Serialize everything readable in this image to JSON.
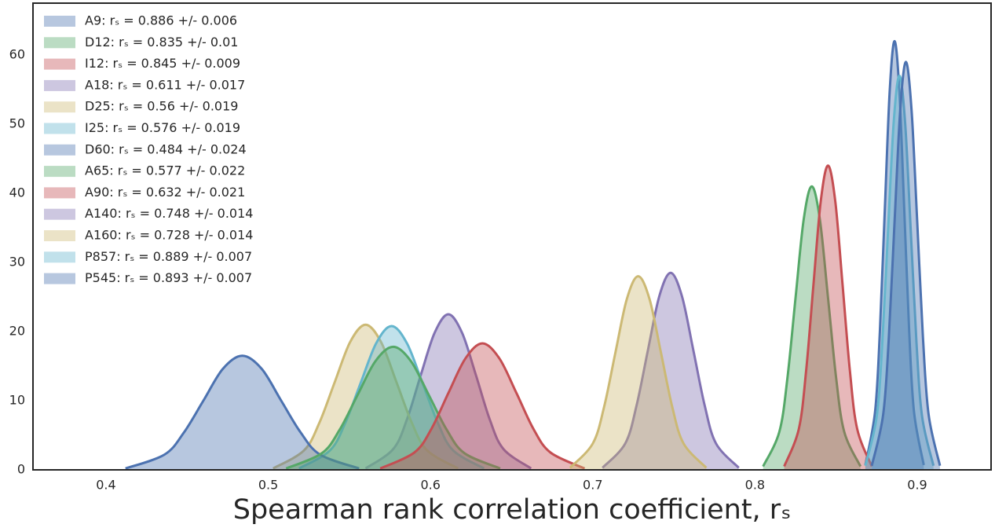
{
  "chart_data": {
    "type": "kde",
    "xlabel": "Spearman rank correlation coefficient, rₛ",
    "xlim": [
      0.355,
      0.9455
    ],
    "ylim": [
      0,
      67.5
    ],
    "xticks": [
      0.4,
      0.5,
      0.6,
      0.7,
      0.8,
      0.9
    ],
    "yticks": [
      0,
      10,
      20,
      30,
      40,
      50,
      60
    ],
    "legend": "upper left",
    "grid": false,
    "series": [
      {
        "name": "A9: rₛ = 0.886 +/- 0.006",
        "color": "#4c72b0",
        "x": [
          0.868,
          0.874,
          0.877,
          0.88,
          0.883,
          0.886,
          0.889,
          0.892,
          0.895,
          0.898,
          0.904
        ],
        "values": [
          0.7,
          8.4,
          20.2,
          37.6,
          54.7,
          62,
          54.7,
          37.6,
          20.2,
          8.4,
          0.7
        ]
      },
      {
        "name": "D12: rₛ = 0.835 +/- 0.01",
        "color": "#55a868",
        "x": [
          0.805,
          0.815,
          0.82,
          0.825,
          0.83,
          0.835,
          0.84,
          0.845,
          0.85,
          0.855,
          0.865
        ],
        "values": [
          0.5,
          5.5,
          13.3,
          24.9,
          36.2,
          41,
          36.2,
          24.9,
          13.3,
          5.5,
          0.5
        ]
      },
      {
        "name": "I12: rₛ = 0.845 +/- 0.009",
        "color": "#c44e52",
        "x": [
          0.818,
          0.827,
          0.8315,
          0.836,
          0.8405,
          0.845,
          0.8495,
          0.854,
          0.8585,
          0.863,
          0.872
        ],
        "values": [
          0.5,
          5.9,
          14.3,
          26.7,
          38.8,
          44,
          38.8,
          26.7,
          14.3,
          5.9,
          0.5
        ]
      },
      {
        "name": "A18: rₛ = 0.611 +/- 0.017",
        "color": "#8172b2",
        "x": [
          0.56,
          0.577,
          0.5855,
          0.594,
          0.6025,
          0.611,
          0.6195,
          0.628,
          0.6365,
          0.645,
          0.662
        ],
        "values": [
          0.2,
          3.0,
          7.3,
          13.7,
          19.8,
          22.5,
          19.8,
          13.7,
          7.3,
          3.0,
          0.2
        ]
      },
      {
        "name": "D25: rₛ = 0.56 +/- 0.019",
        "color": "#ccb974",
        "x": [
          0.503,
          0.522,
          0.5315,
          0.541,
          0.5505,
          0.56,
          0.5695,
          0.579,
          0.5885,
          0.598,
          0.617
        ],
        "values": [
          0.2,
          2.8,
          6.8,
          12.7,
          18.5,
          21,
          18.5,
          12.7,
          6.8,
          2.8,
          0.2
        ]
      },
      {
        "name": "I25: rₛ = 0.576 +/- 0.019",
        "color": "#64b5cd",
        "x": [
          0.519,
          0.538,
          0.5475,
          0.557,
          0.5665,
          0.576,
          0.5855,
          0.595,
          0.6045,
          0.614,
          0.633
        ],
        "values": [
          0.2,
          2.8,
          6.8,
          12.6,
          18.3,
          20.8,
          18.3,
          12.6,
          6.8,
          2.8,
          0.2
        ]
      },
      {
        "name": "D60: rₛ = 0.484 +/- 0.024",
        "color": "#4c72b0",
        "x": [
          0.412,
          0.436,
          0.448,
          0.46,
          0.472,
          0.484,
          0.496,
          0.508,
          0.52,
          0.532,
          0.556
        ],
        "values": [
          0.2,
          2.2,
          5.4,
          10.0,
          14.6,
          16.5,
          14.6,
          10.0,
          5.4,
          2.2,
          0.2
        ]
      },
      {
        "name": "A65: rₛ = 0.577 +/- 0.022",
        "color": "#55a868",
        "x": [
          0.511,
          0.533,
          0.544,
          0.555,
          0.566,
          0.577,
          0.588,
          0.599,
          0.61,
          0.621,
          0.643
        ],
        "values": [
          0.2,
          2.4,
          5.8,
          10.8,
          15.7,
          17.8,
          15.7,
          10.8,
          5.8,
          2.4,
          0.2
        ]
      },
      {
        "name": "A90: rₛ = 0.632 +/- 0.021",
        "color": "#c44e52",
        "x": [
          0.569,
          0.59,
          0.6005,
          0.611,
          0.6215,
          0.632,
          0.6425,
          0.653,
          0.6635,
          0.674,
          0.695
        ],
        "values": [
          0.2,
          2.5,
          5.9,
          11.1,
          16.1,
          18.3,
          16.1,
          11.1,
          5.9,
          2.5,
          0.2
        ]
      },
      {
        "name": "A140: rₛ = 0.748 +/- 0.014",
        "color": "#8172b2",
        "x": [
          0.706,
          0.72,
          0.727,
          0.734,
          0.741,
          0.748,
          0.755,
          0.762,
          0.769,
          0.776,
          0.79
        ],
        "values": [
          0.3,
          3.8,
          9.3,
          17.3,
          25.1,
          28.5,
          25.1,
          17.3,
          9.3,
          3.8,
          0.3
        ]
      },
      {
        "name": "A160: rₛ = 0.728 +/- 0.014",
        "color": "#ccb974",
        "x": [
          0.686,
          0.7,
          0.707,
          0.714,
          0.721,
          0.728,
          0.735,
          0.742,
          0.749,
          0.756,
          0.77
        ],
        "values": [
          0.3,
          3.8,
          9.1,
          17.0,
          24.7,
          28,
          24.7,
          17.0,
          9.1,
          3.8,
          0.3
        ]
      },
      {
        "name": "P857: rₛ = 0.889 +/- 0.007",
        "color": "#64b5cd",
        "x": [
          0.868,
          0.875,
          0.8785,
          0.882,
          0.8855,
          0.889,
          0.8925,
          0.896,
          0.8995,
          0.903,
          0.91
        ],
        "values": [
          0.6,
          7.7,
          18.5,
          34.6,
          50.3,
          57,
          50.3,
          34.6,
          18.5,
          7.7,
          0.6
        ]
      },
      {
        "name": "P545: rₛ = 0.893 +/- 0.007",
        "color": "#4c72b0",
        "x": [
          0.872,
          0.879,
          0.8825,
          0.886,
          0.8895,
          0.893,
          0.8965,
          0.9,
          0.9035,
          0.907,
          0.914
        ],
        "values": [
          0.6,
          8.0,
          19.2,
          35.8,
          52.0,
          59,
          52.0,
          35.8,
          19.2,
          8.0,
          0.6
        ]
      }
    ]
  }
}
